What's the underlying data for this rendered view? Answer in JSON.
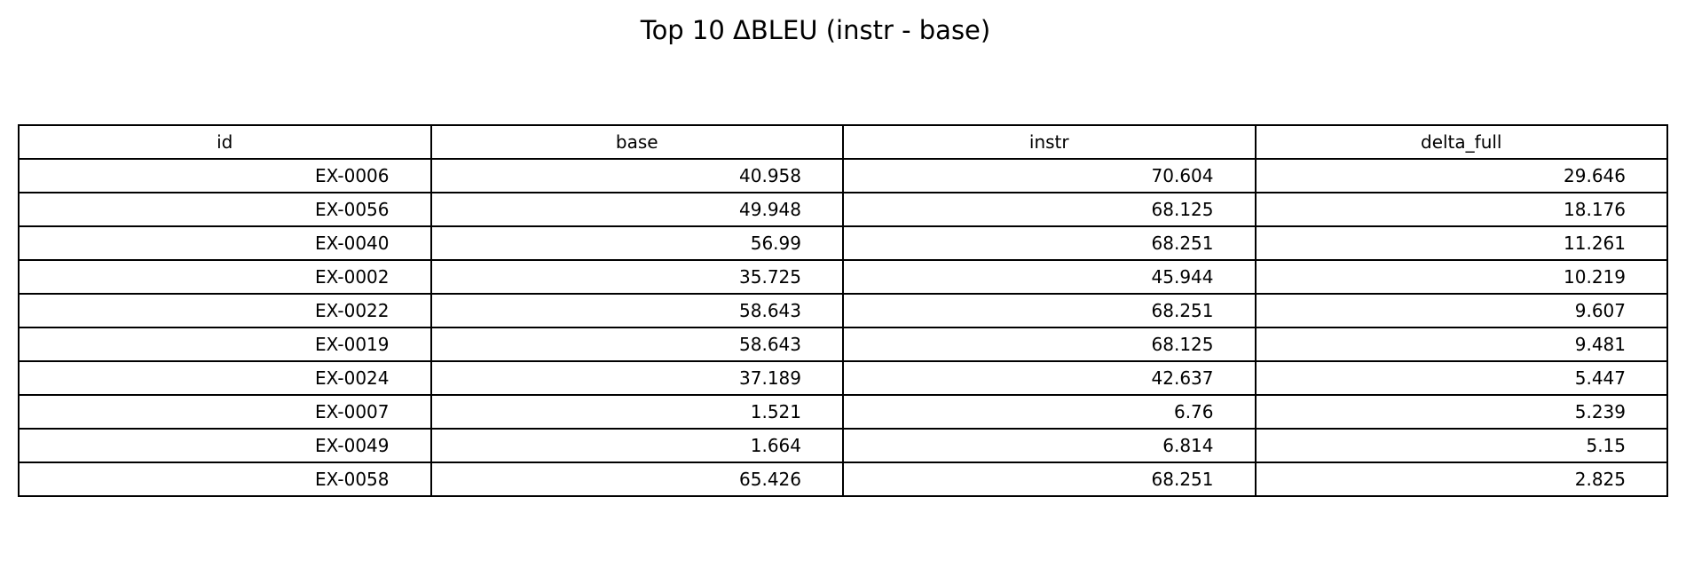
{
  "chart_data": {
    "type": "table",
    "title": "Top 10 ΔBLEU (instr - base)",
    "columns": [
      "id",
      "base",
      "instr",
      "delta_full"
    ],
    "rows": [
      [
        "EX-0006",
        "40.958",
        "70.604",
        "29.646"
      ],
      [
        "EX-0056",
        "49.948",
        "68.125",
        "18.176"
      ],
      [
        "EX-0040",
        "56.99",
        "68.251",
        "11.261"
      ],
      [
        "EX-0002",
        "35.725",
        "45.944",
        "10.219"
      ],
      [
        "EX-0022",
        "58.643",
        "68.251",
        "9.607"
      ],
      [
        "EX-0019",
        "58.643",
        "68.125",
        "9.481"
      ],
      [
        "EX-0024",
        "37.189",
        "42.637",
        "5.447"
      ],
      [
        "EX-0007",
        "1.521",
        "6.76",
        "5.239"
      ],
      [
        "EX-0049",
        "1.664",
        "6.814",
        "5.15"
      ],
      [
        "EX-0058",
        "65.426",
        "68.251",
        "2.825"
      ]
    ]
  }
}
